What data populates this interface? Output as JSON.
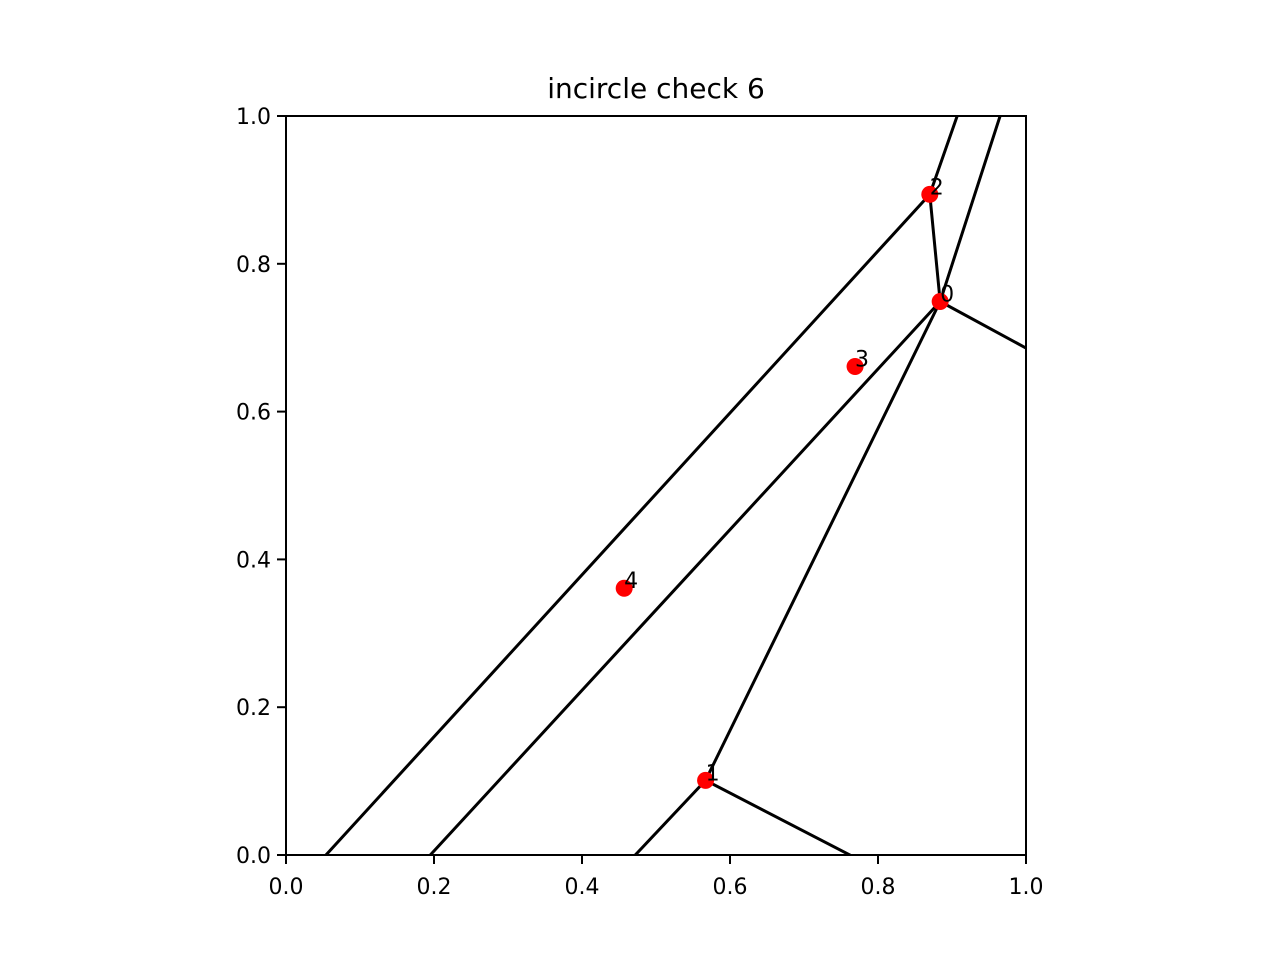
{
  "chart_data": {
    "type": "scatter",
    "title": "incircle check 6",
    "xlabel": "",
    "ylabel": "",
    "xlim": [
      0.0,
      1.0
    ],
    "ylim": [
      0.0,
      1.0
    ],
    "xticks": [
      "0.0",
      "0.2",
      "0.4",
      "0.6",
      "0.8",
      "1.0"
    ],
    "yticks": [
      "0.0",
      "0.2",
      "0.4",
      "0.6",
      "0.8",
      "1.0"
    ],
    "grid": false,
    "point_color": "#ff0000",
    "line_color": "#000000",
    "points": [
      {
        "label": "0",
        "x": 0.884,
        "y": 0.749
      },
      {
        "label": "1",
        "x": 0.567,
        "y": 0.101
      },
      {
        "label": "2",
        "x": 0.87,
        "y": 0.894
      },
      {
        "label": "3",
        "x": 0.769,
        "y": 0.661
      },
      {
        "label": "4",
        "x": 0.457,
        "y": 0.361
      }
    ],
    "segments": [
      [
        [
          0.054,
          0.0
        ],
        [
          0.87,
          0.894
        ]
      ],
      [
        [
          0.87,
          0.894
        ],
        [
          0.907,
          1.0
        ]
      ],
      [
        [
          0.87,
          0.894
        ],
        [
          0.884,
          0.749
        ]
      ],
      [
        [
          0.884,
          0.749
        ],
        [
          0.965,
          1.0
        ]
      ],
      [
        [
          0.195,
          0.0
        ],
        [
          0.884,
          0.749
        ]
      ],
      [
        [
          0.884,
          0.749
        ],
        [
          1.0,
          0.686
        ]
      ],
      [
        [
          0.884,
          0.749
        ],
        [
          0.567,
          0.101
        ]
      ],
      [
        [
          0.567,
          0.101
        ],
        [
          0.472,
          0.0
        ]
      ],
      [
        [
          0.567,
          0.101
        ],
        [
          0.762,
          0.0
        ]
      ]
    ]
  }
}
